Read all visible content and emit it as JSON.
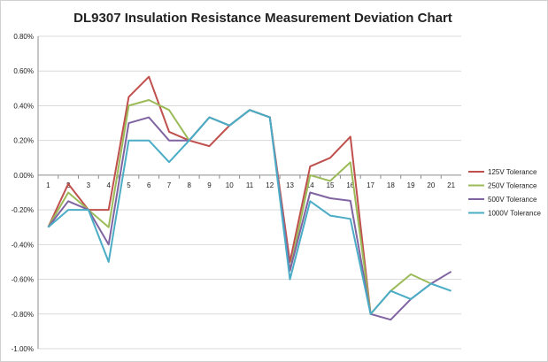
{
  "chart_data": {
    "type": "line",
    "title": "DL9307 Insulation Resistance Measurement Deviation Chart",
    "xlabel": "",
    "ylabel": "",
    "categories": [
      "1",
      "2",
      "3",
      "4",
      "5",
      "6",
      "7",
      "8",
      "9",
      "10",
      "11",
      "12",
      "13",
      "14",
      "15",
      "16",
      "17",
      "18",
      "19",
      "20",
      "21"
    ],
    "ylim": [
      -1.0,
      0.8
    ],
    "yticks": [
      0.8,
      0.6,
      0.4,
      0.2,
      0.0,
      -0.2,
      -0.4,
      -0.6,
      -0.8,
      -1.0
    ],
    "ytick_labels": [
      "0.80%",
      "0.60%",
      "0.40%",
      "0.20%",
      "0.00%",
      "-0.20%",
      "-0.40%",
      "-0.60%",
      "-0.80%",
      "-1.00%"
    ],
    "grid": "horizontal",
    "legend_position": "right",
    "series": [
      {
        "name": "125V Tolerance",
        "color": "#c0504d",
        "values": [
          -0.3,
          -0.05,
          -0.2,
          -0.2,
          0.45,
          0.567,
          0.25,
          0.2,
          0.167,
          0.286,
          0.375,
          0.333,
          -0.5,
          0.05,
          0.1,
          0.222,
          -0.8,
          null,
          null,
          null,
          null
        ]
      },
      {
        "name": "250V Tolerance",
        "color": "#9bbb59",
        "values": [
          -0.3,
          -0.1,
          -0.2,
          -0.3,
          0.4,
          0.433,
          0.375,
          0.2,
          0.333,
          0.286,
          0.375,
          0.333,
          -0.55,
          0.0,
          -0.033,
          0.074,
          -0.8,
          -0.667,
          -0.571,
          -0.625,
          null
        ]
      },
      {
        "name": "500V Tolerance",
        "color": "#8064a2",
        "values": [
          -0.3,
          -0.15,
          -0.2,
          -0.4,
          0.3,
          0.333,
          0.2,
          0.2,
          0.333,
          0.286,
          0.375,
          0.333,
          -0.55,
          -0.1,
          -0.133,
          -0.148,
          -0.8,
          -0.833,
          -0.714,
          -0.625,
          -0.556
        ]
      },
      {
        "name": "1000V Tolerance",
        "color": "#4bacc6",
        "values": [
          -0.3,
          -0.2,
          -0.2,
          -0.5,
          0.2,
          0.2,
          0.075,
          0.2,
          0.333,
          0.286,
          0.375,
          0.333,
          -0.6,
          -0.15,
          -0.233,
          -0.252,
          -0.8,
          -0.667,
          -0.714,
          -0.625,
          -0.667
        ]
      }
    ]
  }
}
